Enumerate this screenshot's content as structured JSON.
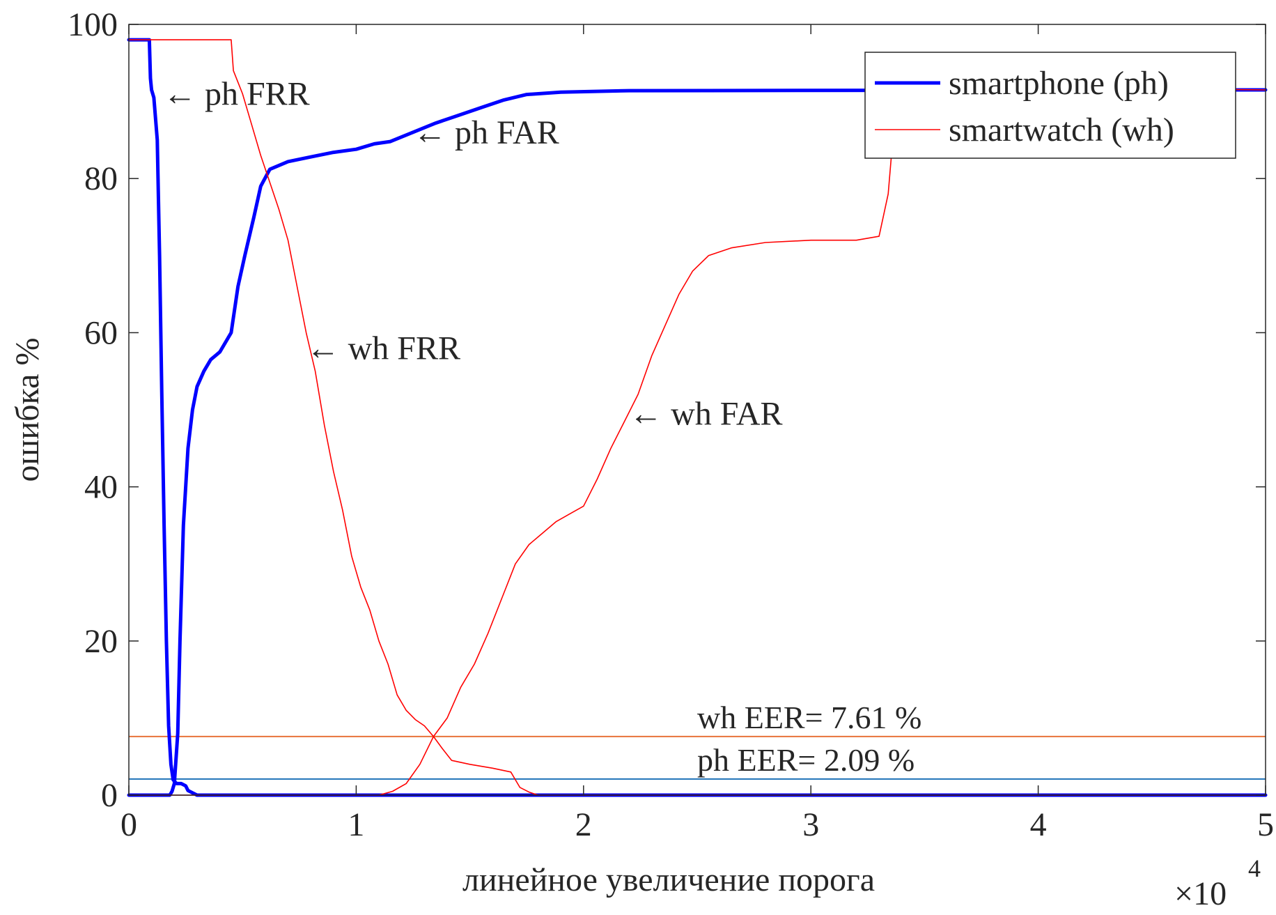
{
  "chart_data": {
    "type": "line",
    "xlabel": "линейное увеличение порога",
    "ylabel": "ошибка %",
    "x_multiplier": {
      "base": "×10",
      "exponent": "4"
    },
    "xlim": [
      0,
      50000
    ],
    "ylim": [
      0,
      100
    ],
    "xticks": [
      0,
      10000,
      20000,
      30000,
      40000,
      50000
    ],
    "xtick_labels": [
      "0",
      "1",
      "2",
      "3",
      "4",
      "5"
    ],
    "yticks": [
      0,
      20,
      40,
      60,
      80,
      100
    ],
    "ytick_labels": [
      "0",
      "20",
      "40",
      "60",
      "80",
      "100"
    ],
    "grid": false,
    "legend_position": "top-right",
    "legend": [
      {
        "label": "smartphone (ph)",
        "color": "#0000ff",
        "width": "thick"
      },
      {
        "label": "smartwatch (wh)",
        "color": "#ff0000",
        "width": "thin"
      }
    ],
    "series": [
      {
        "name": "smartphone (ph)",
        "metric": "FRR",
        "color": "#0000ff",
        "points": [
          [
            0,
            98
          ],
          [
            900,
            98
          ],
          [
            950,
            93
          ],
          [
            1000,
            91.5
          ],
          [
            1100,
            90.5
          ],
          [
            1250,
            85
          ],
          [
            1350,
            70
          ],
          [
            1450,
            52
          ],
          [
            1550,
            35
          ],
          [
            1650,
            20
          ],
          [
            1750,
            9
          ],
          [
            1850,
            4
          ],
          [
            1950,
            2
          ],
          [
            2100,
            1.5
          ],
          [
            2300,
            1.5
          ],
          [
            2500,
            1.2
          ],
          [
            2600,
            0.6
          ],
          [
            2800,
            0.3
          ],
          [
            3000,
            0
          ],
          [
            50000,
            0
          ]
        ]
      },
      {
        "name": "smartphone (ph)",
        "metric": "FAR",
        "color": "#0000ff",
        "points": [
          [
            0,
            0
          ],
          [
            1800,
            0
          ],
          [
            1900,
            0.5
          ],
          [
            2000,
            1.5
          ],
          [
            2150,
            8
          ],
          [
            2250,
            20
          ],
          [
            2400,
            35
          ],
          [
            2600,
            45
          ],
          [
            2800,
            50
          ],
          [
            3000,
            53
          ],
          [
            3300,
            55
          ],
          [
            3600,
            56.5
          ],
          [
            4000,
            57.5
          ],
          [
            4500,
            60
          ],
          [
            4800,
            66
          ],
          [
            5100,
            70
          ],
          [
            5500,
            75
          ],
          [
            5800,
            79
          ],
          [
            6200,
            81.2
          ],
          [
            7000,
            82.2
          ],
          [
            8000,
            82.8
          ],
          [
            9000,
            83.4
          ],
          [
            10000,
            83.8
          ],
          [
            10800,
            84.5
          ],
          [
            11500,
            84.8
          ],
          [
            12500,
            86
          ],
          [
            13500,
            87.2
          ],
          [
            14500,
            88.2
          ],
          [
            15500,
            89.2
          ],
          [
            16500,
            90.2
          ],
          [
            17500,
            90.9
          ],
          [
            19000,
            91.2
          ],
          [
            22000,
            91.4
          ],
          [
            50000,
            91.5
          ]
        ]
      },
      {
        "name": "smartwatch (wh)",
        "metric": "FRR",
        "color": "#ff0000",
        "points": [
          [
            0,
            98
          ],
          [
            4500,
            98
          ],
          [
            4600,
            94
          ],
          [
            5000,
            91
          ],
          [
            5400,
            87
          ],
          [
            5800,
            83
          ],
          [
            6200,
            79.5
          ],
          [
            6600,
            76
          ],
          [
            7000,
            72
          ],
          [
            7400,
            66
          ],
          [
            7800,
            60
          ],
          [
            8200,
            55
          ],
          [
            8600,
            48
          ],
          [
            9000,
            42
          ],
          [
            9400,
            37
          ],
          [
            9800,
            31
          ],
          [
            10200,
            27
          ],
          [
            10600,
            24
          ],
          [
            11000,
            20
          ],
          [
            11400,
            17
          ],
          [
            11800,
            13
          ],
          [
            12200,
            11
          ],
          [
            12600,
            9.8
          ],
          [
            13000,
            9
          ],
          [
            13400,
            7.6
          ],
          [
            13800,
            6
          ],
          [
            14200,
            4.5
          ],
          [
            15000,
            4
          ],
          [
            16000,
            3.5
          ],
          [
            16800,
            3
          ],
          [
            17200,
            1
          ],
          [
            17600,
            0.4
          ],
          [
            18000,
            0
          ],
          [
            50000,
            0
          ]
        ]
      },
      {
        "name": "smartwatch (wh)",
        "metric": "FAR",
        "color": "#ff0000",
        "points": [
          [
            0,
            0
          ],
          [
            11000,
            0
          ],
          [
            11600,
            0.5
          ],
          [
            12200,
            1.5
          ],
          [
            12800,
            4
          ],
          [
            13400,
            7.6
          ],
          [
            14000,
            10
          ],
          [
            14600,
            14
          ],
          [
            15200,
            17
          ],
          [
            15800,
            21
          ],
          [
            16400,
            25.5
          ],
          [
            17000,
            30
          ],
          [
            17600,
            32.5
          ],
          [
            18200,
            34
          ],
          [
            18800,
            35.5
          ],
          [
            19400,
            36.5
          ],
          [
            20000,
            37.5
          ],
          [
            20600,
            41
          ],
          [
            21200,
            45
          ],
          [
            21800,
            48.5
          ],
          [
            22400,
            52
          ],
          [
            23000,
            57
          ],
          [
            23600,
            61
          ],
          [
            24200,
            65
          ],
          [
            24800,
            68
          ],
          [
            25500,
            70
          ],
          [
            26500,
            71
          ],
          [
            28000,
            71.7
          ],
          [
            30000,
            72
          ],
          [
            32000,
            72
          ],
          [
            33000,
            72.5
          ],
          [
            33400,
            78
          ],
          [
            33600,
            85
          ],
          [
            34000,
            93
          ],
          [
            35000,
            92
          ],
          [
            50000,
            91.5
          ]
        ]
      }
    ],
    "eer_lines": [
      {
        "name": "wh EER",
        "y": 7.61,
        "color": "#e8733a",
        "label": "wh EER= 7.61 %"
      },
      {
        "name": "ph EER",
        "y": 2.09,
        "color": "#1f72b8",
        "label": "ph EER= 2.09 %"
      }
    ],
    "annotations": [
      {
        "text": "← ph FRR",
        "x": 1500,
        "y": 91
      },
      {
        "text": "← ph FAR",
        "x": 12500,
        "y": 86
      },
      {
        "text": "← wh FRR",
        "x": 7800,
        "y": 58
      },
      {
        "text": "← wh FAR",
        "x": 22000,
        "y": 49.5
      }
    ]
  }
}
